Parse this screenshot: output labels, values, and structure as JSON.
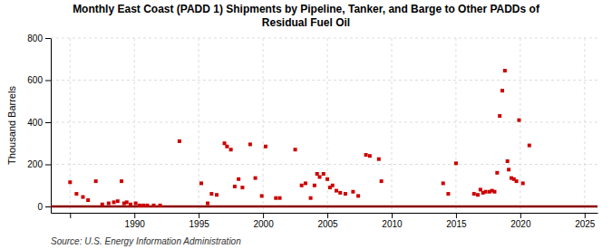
{
  "chart_data": {
    "type": "scatter",
    "title": "Monthly East Coast (PADD 1) Shipments by Pipeline, Tanker, and Barge to Other PADDs of\nResidual Fuel Oil",
    "ylabel": "Thousand Barrels",
    "source": "Source: U.S. Energy Information Administration",
    "color": "#cc0000",
    "marker": "square",
    "grid": true,
    "xlim": [
      1983.5,
      2026
    ],
    "xticks": [
      {
        "value": 1985,
        "label": null
      },
      1990,
      1995,
      2000,
      2005,
      2010,
      2015,
      2020,
      2025
    ],
    "ylim": [
      -30,
      800
    ],
    "yticks": [
      0,
      200,
      400,
      600,
      800
    ],
    "reference_lines": [
      {
        "y": 0,
        "color": "#8b0000"
      }
    ],
    "x": [
      1985.0,
      1985.5,
      1986.0,
      1986.4,
      1987.0,
      1987.5,
      1988.0,
      1988.4,
      1988.7,
      1989.0,
      1989.2,
      1989.4,
      1989.7,
      1990.1,
      1990.4,
      1990.7,
      1991.0,
      1991.5,
      1992.0,
      1993.5,
      1995.2,
      1995.7,
      1996.0,
      1996.4,
      1997.0,
      1997.2,
      1997.5,
      1997.8,
      1998.1,
      1998.4,
      1999.0,
      1999.4,
      1999.9,
      2000.2,
      2001.0,
      2001.3,
      2002.5,
      2003.0,
      2003.3,
      2003.7,
      2004.0,
      2004.2,
      2004.4,
      2004.7,
      2005.0,
      2005.2,
      2005.4,
      2005.7,
      2006.0,
      2006.4,
      2007.0,
      2007.4,
      2008.0,
      2008.3,
      2009.0,
      2009.2,
      2014.0,
      2014.4,
      2015.0,
      2016.4,
      2016.7,
      2016.9,
      2017.1,
      2017.3,
      2017.6,
      2017.8,
      2018.0,
      2018.2,
      2018.4,
      2018.6,
      2018.8,
      2019.0,
      2019.1,
      2019.3,
      2019.5,
      2019.7,
      2019.9,
      2020.2,
      2020.7
    ],
    "values": [
      115,
      60,
      45,
      30,
      120,
      10,
      15,
      20,
      25,
      120,
      15,
      20,
      10,
      15,
      5,
      5,
      5,
      5,
      5,
      310,
      110,
      15,
      60,
      55,
      300,
      285,
      270,
      95,
      130,
      90,
      295,
      135,
      50,
      285,
      40,
      40,
      270,
      100,
      110,
      40,
      100,
      155,
      140,
      155,
      130,
      90,
      100,
      75,
      65,
      60,
      70,
      50,
      245,
      240,
      225,
      120,
      110,
      60,
      205,
      60,
      55,
      80,
      65,
      70,
      70,
      75,
      70,
      160,
      430,
      550,
      645,
      215,
      175,
      135,
      130,
      120,
      410,
      110,
      290
    ]
  }
}
